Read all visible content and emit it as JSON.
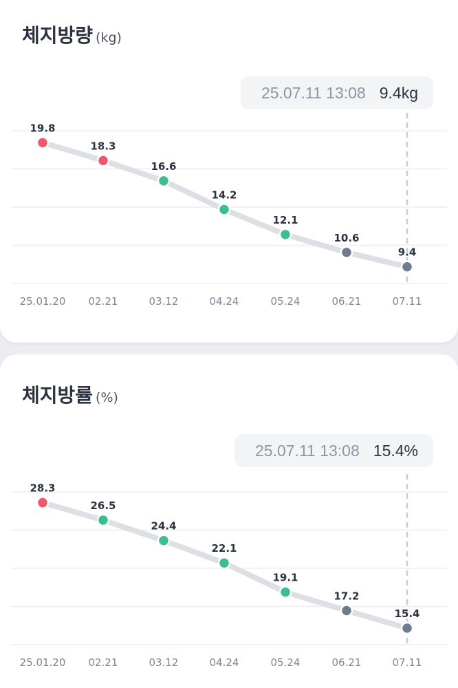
{
  "colors": {
    "high": "#f0566e",
    "normal": "#3ebd8e",
    "neutral": "#6f7c8e",
    "line": "#dcdfe4",
    "grid": "#eceef1",
    "tooltip_line": "#c9cdd3"
  },
  "fat_mass": {
    "title": "체지방량",
    "unit": "(kg)",
    "tooltip": {
      "date": "25.07.11 13:08",
      "value": "9.4kg"
    }
  },
  "fat_pct": {
    "title": "체지방률",
    "unit": "(%)",
    "tooltip": {
      "date": "25.07.11 13:08",
      "value": "15.4%"
    }
  },
  "chart_data": [
    {
      "type": "line",
      "title": "체지방량",
      "ylabel": "(kg)",
      "categories": [
        "25.01.20",
        "02.21",
        "03.12",
        "04.24",
        "05.24",
        "06.21",
        "07.11"
      ],
      "values": [
        19.8,
        18.3,
        16.6,
        14.2,
        12.1,
        10.6,
        9.4
      ],
      "labels": [
        "19.8",
        "18.3",
        "16.6",
        "14.2",
        "12.1",
        "10.6",
        "9.4"
      ],
      "point_status": [
        "high",
        "high",
        "normal",
        "normal",
        "normal",
        "neutral",
        "neutral"
      ],
      "ylim": [
        8.0,
        20.8
      ],
      "grid": true,
      "selected_index": 6
    },
    {
      "type": "line",
      "title": "체지방률",
      "ylabel": "(%)",
      "categories": [
        "25.01.20",
        "02.21",
        "03.12",
        "04.24",
        "05.24",
        "06.21",
        "07.11"
      ],
      "values": [
        28.3,
        26.5,
        24.4,
        22.1,
        19.1,
        17.2,
        15.4
      ],
      "labels": [
        "28.3",
        "26.5",
        "24.4",
        "22.1",
        "19.1",
        "17.2",
        "15.4"
      ],
      "point_status": [
        "high",
        "normal",
        "normal",
        "normal",
        "normal",
        "neutral",
        "neutral"
      ],
      "ylim": [
        13.7,
        29.4
      ],
      "grid": true,
      "selected_index": 6
    }
  ]
}
